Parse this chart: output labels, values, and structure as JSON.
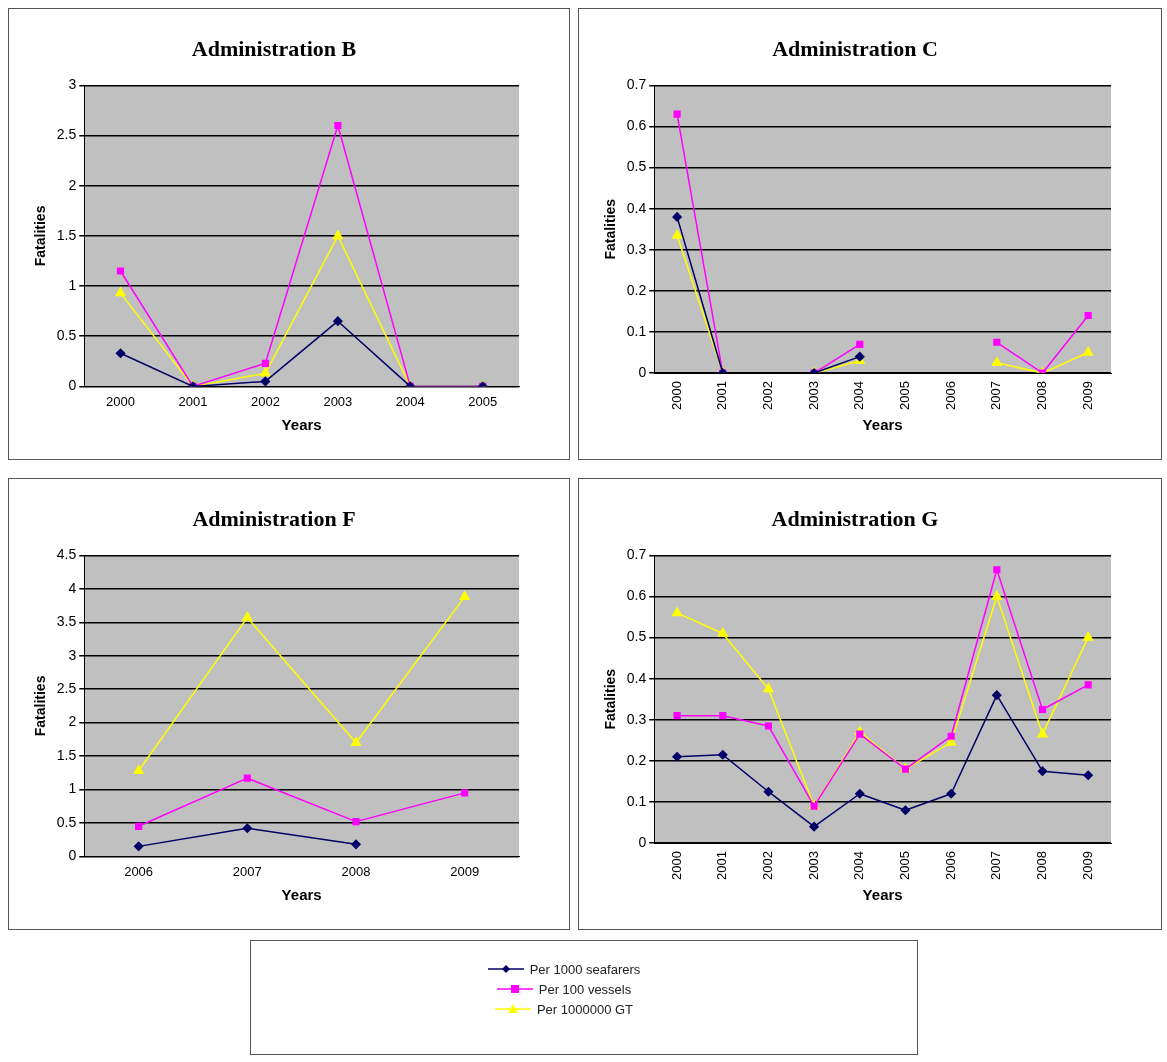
{
  "chart_data": [
    {
      "type": "line",
      "title": "Administration B",
      "xlabel": "Years",
      "ylabel": "Fatalities",
      "categories": [
        "2000",
        "2001",
        "2002",
        "2003",
        "2004",
        "2005"
      ],
      "ylim": [
        0,
        3
      ],
      "yticks": [
        0,
        0.5,
        1,
        1.5,
        2,
        2.5,
        3
      ],
      "grid": "y",
      "legend": "bottom",
      "series": [
        {
          "name": "Per 1000 seafarers",
          "color": "#000066",
          "marker": "diamond",
          "values": [
            0.33,
            0,
            0.05,
            0.65,
            0,
            0
          ]
        },
        {
          "name": "Per 100 vessels",
          "color": "#ff00ff",
          "marker": "square",
          "values": [
            1.15,
            0,
            0.23,
            2.6,
            0,
            0
          ]
        },
        {
          "name": "Per 1000000 GT",
          "color": "#ffff00",
          "marker": "triangle",
          "values": [
            0.93,
            0,
            0.13,
            1.5,
            0,
            0
          ]
        }
      ]
    },
    {
      "type": "line",
      "title": "Administration C",
      "xlabel": "Years",
      "ylabel": "Fatalities",
      "categories": [
        "2000",
        "2001",
        "2002",
        "2003",
        "2004",
        "2005",
        "2006",
        "2007",
        "2008",
        "2009"
      ],
      "ylim": [
        0,
        0.7
      ],
      "yticks": [
        0,
        0.1,
        0.2,
        0.3,
        0.4,
        0.5,
        0.6,
        0.7
      ],
      "grid": "y",
      "series": [
        {
          "color": "#000066",
          "marker": "diamond",
          "values": [
            0.38,
            0,
            null,
            0,
            0.04,
            null,
            null,
            null,
            null,
            null
          ]
        },
        {
          "color": "#ff00ff",
          "marker": "square",
          "values": [
            0.63,
            0,
            null,
            0,
            0.07,
            null,
            null,
            0.075,
            0,
            0.14
          ]
        },
        {
          "color": "#ffff00",
          "marker": "triangle",
          "values": [
            0.335,
            0,
            null,
            0,
            0.03,
            null,
            null,
            0.025,
            0,
            0.05
          ]
        }
      ]
    },
    {
      "type": "line",
      "title": "Administration F",
      "xlabel": "Years",
      "ylabel": "Fatalities",
      "categories": [
        "2006",
        "2007",
        "2008",
        "2009"
      ],
      "ylim": [
        0,
        4.5
      ],
      "yticks": [
        0,
        0.5,
        1,
        1.5,
        2,
        2.5,
        3,
        3.5,
        4,
        4.5
      ],
      "grid": "y",
      "series": [
        {
          "color": "#000066",
          "marker": "diamond",
          "values": [
            0.15,
            0.42,
            0.18,
            null
          ]
        },
        {
          "color": "#ff00ff",
          "marker": "square",
          "values": [
            0.45,
            1.17,
            0.52,
            0.95
          ]
        },
        {
          "color": "#ffff00",
          "marker": "triangle",
          "values": [
            1.28,
            3.57,
            1.7,
            3.88
          ]
        }
      ]
    },
    {
      "type": "line",
      "title": "Administration G",
      "xlabel": "Years",
      "ylabel": "Fatalities",
      "categories": [
        "2000",
        "2001",
        "2002",
        "2003",
        "2004",
        "2005",
        "2006",
        "2007",
        "2008",
        "2009"
      ],
      "ylim": [
        0,
        0.7
      ],
      "yticks": [
        0,
        0.1,
        0.2,
        0.3,
        0.4,
        0.5,
        0.6,
        0.7
      ],
      "grid": "y",
      "series": [
        {
          "color": "#000066",
          "marker": "diamond",
          "values": [
            0.21,
            0.215,
            0.125,
            0.04,
            0.12,
            0.08,
            0.12,
            0.36,
            0.175,
            0.165
          ]
        },
        {
          "color": "#ff00ff",
          "marker": "square",
          "values": [
            0.31,
            0.31,
            0.285,
            0.09,
            0.265,
            0.18,
            0.26,
            0.665,
            0.325,
            0.385
          ]
        },
        {
          "color": "#ffff00",
          "marker": "triangle",
          "values": [
            0.56,
            0.51,
            0.375,
            0.09,
            0.27,
            0.18,
            0.245,
            0.6,
            0.265,
            0.5
          ]
        }
      ]
    }
  ]
}
